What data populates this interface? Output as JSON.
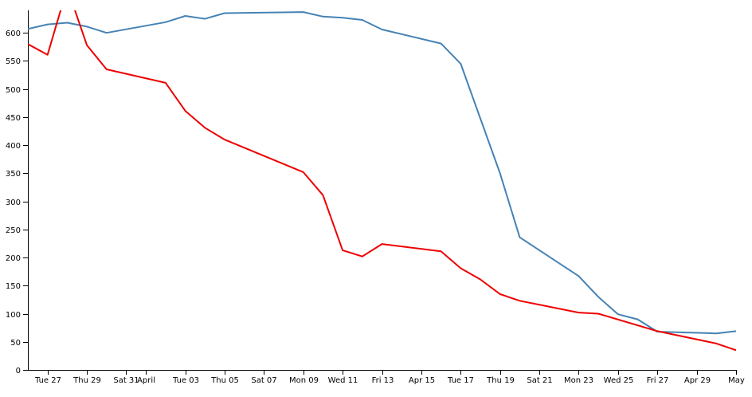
{
  "chart_data": {
    "type": "line",
    "title": "",
    "xlabel": "",
    "ylabel": "",
    "x_axis_kind": "date",
    "xlim": [
      "2018-03-26",
      "2018-05-01"
    ],
    "ylim": [
      0,
      640
    ],
    "y_ticks": [
      0,
      50,
      100,
      150,
      200,
      250,
      300,
      350,
      400,
      450,
      500,
      550,
      600
    ],
    "x_ticks": [
      {
        "date": "2018-03-27",
        "label": "Tue 27"
      },
      {
        "date": "2018-03-29",
        "label": "Thu 29"
      },
      {
        "date": "2018-03-31",
        "label": "Sat 31"
      },
      {
        "date": "2018-04-01",
        "label": "April"
      },
      {
        "date": "2018-04-03",
        "label": "Tue 03"
      },
      {
        "date": "2018-04-05",
        "label": "Thu 05"
      },
      {
        "date": "2018-04-07",
        "label": "Sat 07"
      },
      {
        "date": "2018-04-09",
        "label": "Mon 09"
      },
      {
        "date": "2018-04-11",
        "label": "Wed 11"
      },
      {
        "date": "2018-04-13",
        "label": "Fri 13"
      },
      {
        "date": "2018-04-15",
        "label": "Apr 15"
      },
      {
        "date": "2018-04-17",
        "label": "Tue 17"
      },
      {
        "date": "2018-04-19",
        "label": "Thu 19"
      },
      {
        "date": "2018-04-21",
        "label": "Sat 21"
      },
      {
        "date": "2018-04-23",
        "label": "Mon 23"
      },
      {
        "date": "2018-04-25",
        "label": "Wed 25"
      },
      {
        "date": "2018-04-27",
        "label": "Fri 27"
      },
      {
        "date": "2018-04-29",
        "label": "Apr 29"
      },
      {
        "date": "2018-05-01",
        "label": "May"
      }
    ],
    "grid": false,
    "legend": "none",
    "series": [
      {
        "color": "#4682b4",
        "points": [
          {
            "x": "2018-03-26",
            "y": 607
          },
          {
            "x": "2018-03-27",
            "y": 615
          },
          {
            "x": "2018-03-28",
            "y": 618
          },
          {
            "x": "2018-03-29",
            "y": 611
          },
          {
            "x": "2018-03-30",
            "y": 600
          },
          {
            "x": "2018-04-02",
            "y": 619
          },
          {
            "x": "2018-04-03",
            "y": 630
          },
          {
            "x": "2018-04-04",
            "y": 625
          },
          {
            "x": "2018-04-05",
            "y": 635
          },
          {
            "x": "2018-04-09",
            "y": 637
          },
          {
            "x": "2018-04-10",
            "y": 629
          },
          {
            "x": "2018-04-11",
            "y": 627
          },
          {
            "x": "2018-04-12",
            "y": 623
          },
          {
            "x": "2018-04-13",
            "y": 606
          },
          {
            "x": "2018-04-16",
            "y": 581
          },
          {
            "x": "2018-04-17",
            "y": 545
          },
          {
            "x": "2018-04-19",
            "y": 350
          },
          {
            "x": "2018-04-20",
            "y": 236
          },
          {
            "x": "2018-04-23",
            "y": 167
          },
          {
            "x": "2018-04-24",
            "y": 130
          },
          {
            "x": "2018-04-25",
            "y": 99
          },
          {
            "x": "2018-04-26",
            "y": 90
          },
          {
            "x": "2018-04-27",
            "y": 68
          },
          {
            "x": "2018-04-30",
            "y": 65
          },
          {
            "x": "2018-05-01",
            "y": 69
          }
        ]
      },
      {
        "color": "#ee0000",
        "points": [
          {
            "x": "2018-03-26",
            "y": 580
          },
          {
            "x": "2018-03-27",
            "y": 561
          },
          {
            "x": "2018-03-28",
            "y": 680
          },
          {
            "x": "2018-03-29",
            "y": 578
          },
          {
            "x": "2018-03-30",
            "y": 535
          },
          {
            "x": "2018-04-02",
            "y": 511
          },
          {
            "x": "2018-04-03",
            "y": 461
          },
          {
            "x": "2018-04-04",
            "y": 431
          },
          {
            "x": "2018-04-05",
            "y": 410
          },
          {
            "x": "2018-04-09",
            "y": 352
          },
          {
            "x": "2018-04-10",
            "y": 311
          },
          {
            "x": "2018-04-11",
            "y": 213
          },
          {
            "x": "2018-04-12",
            "y": 202
          },
          {
            "x": "2018-04-13",
            "y": 224
          },
          {
            "x": "2018-04-16",
            "y": 211
          },
          {
            "x": "2018-04-17",
            "y": 181
          },
          {
            "x": "2018-04-18",
            "y": 161
          },
          {
            "x": "2018-04-19",
            "y": 135
          },
          {
            "x": "2018-04-20",
            "y": 123
          },
          {
            "x": "2018-04-23",
            "y": 102
          },
          {
            "x": "2018-04-24",
            "y": 100
          },
          {
            "x": "2018-04-27",
            "y": 69
          },
          {
            "x": "2018-04-30",
            "y": 47
          },
          {
            "x": "2018-05-01",
            "y": 35
          }
        ]
      }
    ]
  }
}
